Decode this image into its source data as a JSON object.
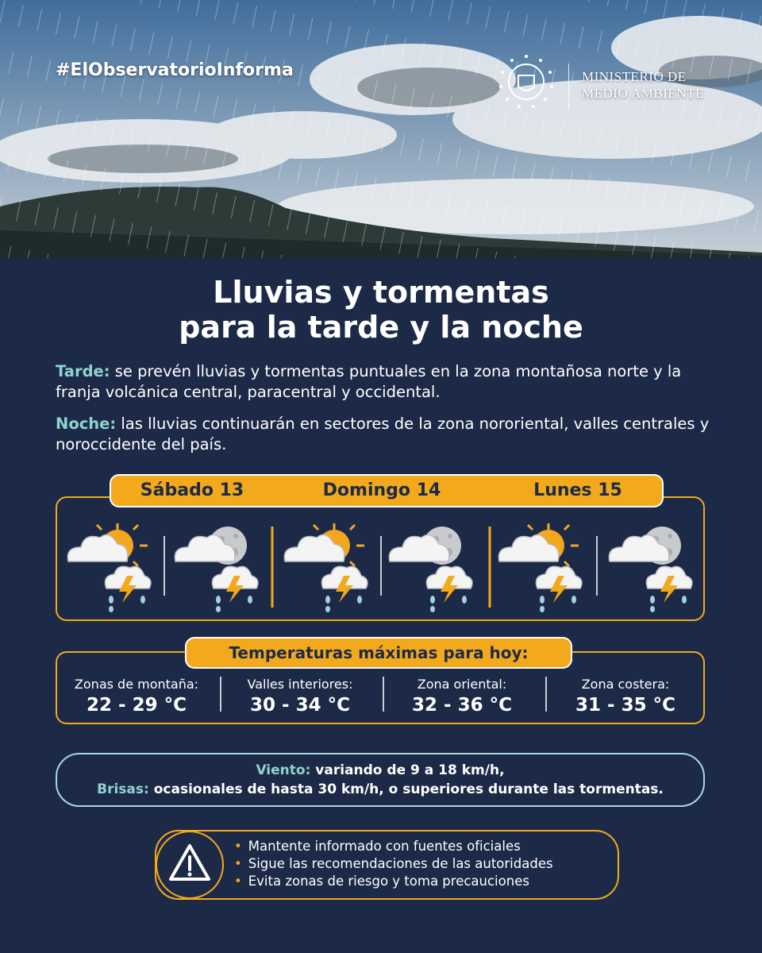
{
  "header": {
    "hashtag": "#ElObservatorioInforma",
    "ministry": [
      "MINISTERIO DE",
      "MEDIO AMBIENTE"
    ]
  },
  "title": [
    "Lluvias y tormentas",
    "para la tarde y la noche"
  ],
  "paragraphs": [
    {
      "label": "Tarde:",
      "text": "se prevén lluvias y tormentas puntuales en la zona montañosa norte y la franja volcánica central, paracentral y occidental."
    },
    {
      "label": "Noche:",
      "text": "las lluvias continuarán en sectores de la zona nororiental, valles centrales y noroccidente del país."
    }
  ],
  "days": [
    "Sábado 13",
    "Domingo 14",
    "Lunes 15"
  ],
  "temperatures": {
    "title": "Temperaturas máximas para hoy:",
    "zones": [
      {
        "name": "Zonas de montaña:",
        "range": "22 - 29 °C"
      },
      {
        "name": "Valles interiores:",
        "range": "30 - 34 °C"
      },
      {
        "name": "Zona oriental:",
        "range": "32 - 36 °C"
      },
      {
        "name": "Zona costera:",
        "range": "31 - 35 °C"
      }
    ]
  },
  "wind": [
    {
      "label": "Viento:",
      "text": "variando de 9 a 18 km/h,"
    },
    {
      "label": "Brisas:",
      "text": "ocasionales de hasta 30 km/h, o superiores durante las tormentas."
    }
  ],
  "tips": [
    "Mantente informado con fuentes oficiales",
    "Sigue las recomendaciones de las autoridades",
    "Evita zonas de riesgo y toma precauciones"
  ]
}
